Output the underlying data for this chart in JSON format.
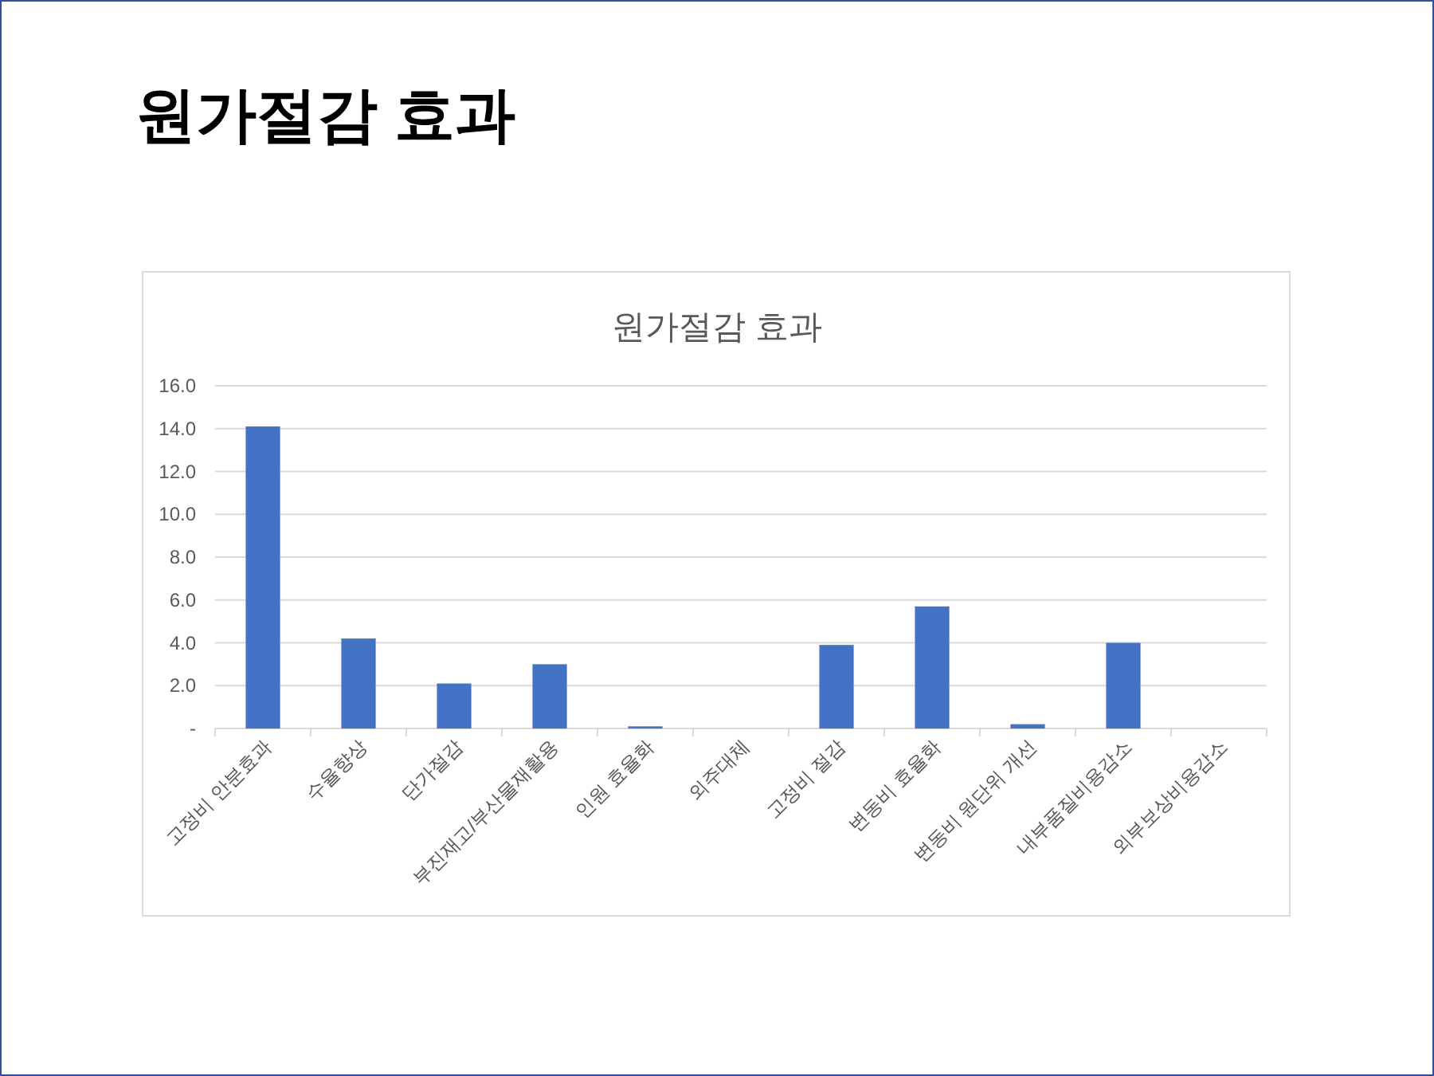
{
  "chart_data": {
    "type": "bar",
    "title": "원가절감 효과",
    "annotations": [
      "원가절감 효과"
    ],
    "categories": [
      "고정비 안분효과",
      "수율향상",
      "단가절감",
      "부진재고/부산물재활용",
      "인원 효율화",
      "외주대체",
      "고정비 절감",
      "변동비 효율화",
      "변동비 원단위 개선",
      "내부품질비용감소",
      "외부보상비용감소"
    ],
    "values": [
      14.1,
      4.2,
      2.1,
      3.0,
      0.1,
      0,
      3.9,
      5.7,
      0.2,
      4.0,
      0
    ],
    "color": "#4472c4",
    "ylim": [
      0,
      16
    ],
    "yticks": [
      {
        "value": 0,
        "label": "-"
      },
      {
        "value": 2,
        "label": "2.0"
      },
      {
        "value": 4,
        "label": "4.0"
      },
      {
        "value": 6,
        "label": "6.0"
      },
      {
        "value": 8,
        "label": "8.0"
      },
      {
        "value": 10,
        "label": "10.0"
      },
      {
        "value": 12,
        "label": "12.0"
      },
      {
        "value": 14,
        "label": "14.0"
      },
      {
        "value": 16,
        "label": "16.0"
      }
    ],
    "grid": "y"
  }
}
